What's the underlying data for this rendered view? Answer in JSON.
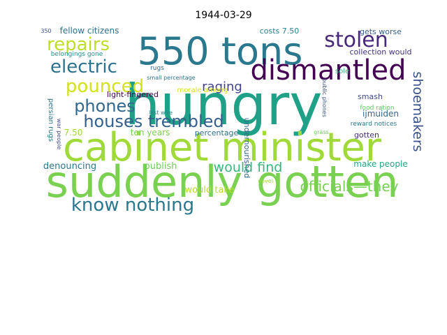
{
  "chart_data": {
    "type": "wordcloud",
    "title": "1944-03-29",
    "words": [
      {
        "text": "hungry",
        "color": "#1fa187"
      },
      {
        "text": "suddenly gotten",
        "color": "#7ad151"
      },
      {
        "text": "cabinet minister",
        "color": "#a0da39"
      },
      {
        "text": "550 tons",
        "color": "#2a788e"
      },
      {
        "text": "dismantled",
        "color": "#440154"
      },
      {
        "text": "stolen",
        "color": "#482878"
      },
      {
        "text": "repairs",
        "color": "#bddf26"
      },
      {
        "text": "electric",
        "color": "#2c728e"
      },
      {
        "text": "pounced",
        "color": "#d2e21b"
      },
      {
        "text": "phones",
        "color": "#31688e"
      },
      {
        "text": "houses trembled",
        "color": "#35608d"
      },
      {
        "text": "know nothing",
        "color": "#2a788e"
      },
      {
        "text": "officials—they",
        "color": "#75d054"
      },
      {
        "text": "shoemakers",
        "color": "#3b528b"
      },
      {
        "text": "would find",
        "color": "#35b779"
      },
      {
        "text": "raging",
        "color": "#414487"
      },
      {
        "text": "denouncing",
        "color": "#2a788e"
      },
      {
        "text": "publish",
        "color": "#6ece58"
      },
      {
        "text": "would take",
        "color": "#b5de2b"
      },
      {
        "text": "make people",
        "color": "#22a884"
      },
      {
        "text": "fellow citizens",
        "color": "#2c728e"
      },
      {
        "text": "costs 7.50",
        "color": "#26828e"
      },
      {
        "text": "gets worse",
        "color": "#355f8d"
      },
      {
        "text": "collection would",
        "color": "#46327e"
      },
      {
        "text": "belongings gone",
        "color": "#21918c"
      },
      {
        "text": "light-fingered",
        "color": "#440154"
      },
      {
        "text": "ijmuiden",
        "color": "#31688e"
      },
      {
        "text": "ten years",
        "color": "#7ad151"
      },
      {
        "text": "7.50",
        "color": "#a0da39"
      },
      {
        "text": "percentage",
        "color": "#2c728e"
      },
      {
        "text": "smash",
        "color": "#3e4a89"
      },
      {
        "text": "gotten",
        "color": "#472d7b"
      },
      {
        "text": "small percentage",
        "color": "#2c728e"
      },
      {
        "text": "morale among",
        "color": "#d8e219"
      },
      {
        "text": "last wire",
        "color": "#26828e"
      },
      {
        "text": "persian rugs",
        "color": "#2a788e"
      },
      {
        "text": "war people",
        "color": "#3e4a89"
      },
      {
        "text": "sole",
        "color": "#35b779"
      },
      {
        "text": "rugs",
        "color": "#31688e"
      },
      {
        "text": "reward notices",
        "color": "#2a788e"
      },
      {
        "text": "food ration",
        "color": "#5ec962"
      },
      {
        "text": "public phones",
        "color": "#3b528b"
      },
      {
        "text": "undernourished",
        "color": "#31688e"
      },
      {
        "text": "grass",
        "color": "#6ece58"
      },
      {
        "text": "novel",
        "color": "#a0da39"
      },
      {
        "text": "350",
        "color": "#3b528b"
      }
    ]
  }
}
